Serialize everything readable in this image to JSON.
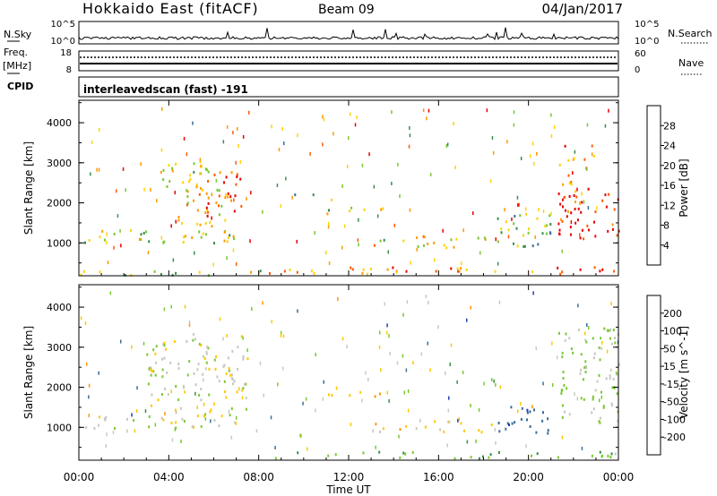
{
  "header": {
    "station": "Hokkaido East (fitACF)",
    "beam": "Beam 09",
    "date": "04/Jan/2017"
  },
  "summary_panels": {
    "nsky_label": "N.Sky",
    "nsky_ticks": [
      "10^5",
      "10^0"
    ],
    "nsky_right_ticks": [
      "10^5",
      "10^0"
    ],
    "nsearch_label": "N.Search",
    "freq_label_top": "Freq.",
    "freq_label_unit": "[MHz]",
    "freq_ticks": [
      "18",
      "8"
    ],
    "nave_ticks": [
      "60",
      "0"
    ],
    "nave_label": "Nave",
    "cpid_label": "CPID",
    "cpid_text": "interleavedscan (fast) -191"
  },
  "axes": {
    "x_ticks": [
      "00:00",
      "04:00",
      "08:00",
      "12:00",
      "16:00",
      "20:00",
      "00:00"
    ],
    "x_label": "Time UT",
    "y_label": "Slant Range [km]",
    "y_ticks": [
      "4000",
      "3000",
      "2000",
      "1000"
    ]
  },
  "power_scale": {
    "label": "Power [dB]",
    "ticks": [
      "28",
      "24",
      "20",
      "16",
      "12",
      "8",
      "4"
    ],
    "colors": [
      "#e80000",
      "#ff5a00",
      "#ff9a00",
      "#ffd200",
      "#7ac832",
      "#3a8f4a",
      "#3a6e9a",
      "#1e3cd0"
    ]
  },
  "velocity_scale": {
    "label": "Velocity [m s^-1]",
    "ticks": [
      "200",
      "100",
      "50",
      "15",
      "-15",
      "-50",
      "-100",
      "-200"
    ],
    "colors": [
      "#1e3cb4",
      "#3a6e9a",
      "#3a8f4a",
      "#7ac832",
      "#c8c8c0",
      "#ffc800",
      "#ff9600",
      "#ff5a00",
      "#e80000"
    ]
  },
  "chart_data": {
    "type": "heatmap",
    "x_label": "Time UT",
    "y_label": "Slant Range [km]",
    "xlim": [
      0,
      24
    ],
    "ylim": [
      180,
      4560
    ],
    "x_unit": "hours UT",
    "power_range_dB": [
      0,
      30
    ],
    "velocity_range": [
      -250,
      250
    ],
    "power_regions": [
      {
        "t0": 0.0,
        "t1": 7.3,
        "r0": 1000,
        "r1": 1350,
        "value": 14
      },
      {
        "t0": 4.2,
        "t1": 6.8,
        "r0": 1300,
        "r1": 2400,
        "value": 18
      },
      {
        "t0": 5.6,
        "t1": 7.2,
        "r0": 1700,
        "r1": 2900,
        "value": 26
      },
      {
        "t0": 3.5,
        "t1": 6.0,
        "r0": 2400,
        "r1": 3100,
        "value": 14
      },
      {
        "t0": 8.3,
        "t1": 24.0,
        "r0": 250,
        "r1": 420,
        "value": 22
      },
      {
        "t0": 0.0,
        "t1": 8.3,
        "r0": 200,
        "r1": 350,
        "value": 12
      },
      {
        "t0": 11.0,
        "t1": 13.8,
        "r0": 1750,
        "r1": 1920,
        "value": 14
      },
      {
        "t0": 9.5,
        "t1": 11.5,
        "r0": 2100,
        "r1": 2300,
        "value": 10
      },
      {
        "t0": 13.0,
        "t1": 18.5,
        "r0": 900,
        "r1": 1200,
        "value": 16
      },
      {
        "t0": 18.5,
        "t1": 21.0,
        "r0": 900,
        "r1": 1800,
        "value": 10
      },
      {
        "t0": 21.3,
        "t1": 24.0,
        "r0": 1100,
        "r1": 2300,
        "value": 27
      },
      {
        "t0": 21.3,
        "t1": 23.0,
        "r0": 2300,
        "r1": 3500,
        "value": 20
      }
    ],
    "velocity_regions": [
      {
        "t0": 0.0,
        "t1": 7.3,
        "r0": 1000,
        "r1": 1350,
        "value": 0
      },
      {
        "t0": 3.0,
        "t1": 7.5,
        "r0": 1300,
        "r1": 3400,
        "value": 0
      },
      {
        "t0": 8.3,
        "t1": 24.0,
        "r0": 250,
        "r1": 420,
        "value": 40
      },
      {
        "t0": 11.0,
        "t1": 13.8,
        "r0": 1750,
        "r1": 1920,
        "value": -40
      },
      {
        "t0": 13.0,
        "t1": 18.5,
        "r0": 900,
        "r1": 1200,
        "value": -30
      },
      {
        "t0": 18.5,
        "t1": 21.0,
        "r0": 850,
        "r1": 1600,
        "value": 180
      },
      {
        "t0": 21.3,
        "t1": 24.0,
        "r0": 1100,
        "r1": 3500,
        "value": 20
      }
    ]
  }
}
